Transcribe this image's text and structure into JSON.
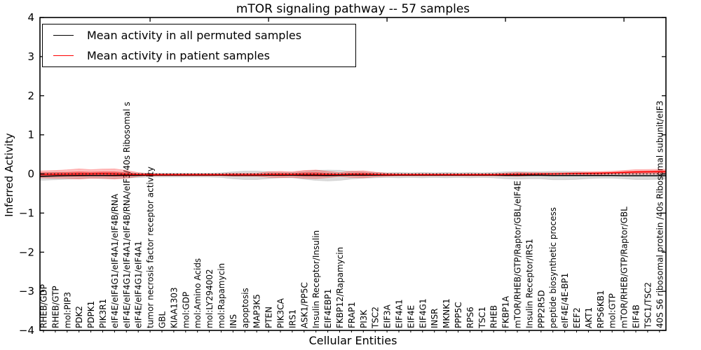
{
  "figure": {
    "title": "mTOR signaling pathway -- 57 samples"
  },
  "legend": {
    "entries": [
      {
        "label": "Mean activity in all permuted samples",
        "color": "#000000"
      },
      {
        "label": "Mean activity in patient samples",
        "color": "#ff0000"
      }
    ]
  },
  "chart_data": {
    "type": "line",
    "title": "mTOR signaling pathway -- 57 samples",
    "xlabel": "Cellular Entities",
    "ylabel": "Inferred Activity",
    "ylim": [
      -4,
      4
    ],
    "yticks": [
      -4,
      -3,
      -2,
      -1,
      0,
      1,
      2,
      3,
      4
    ],
    "ytick_labels": [
      "−4",
      "−3",
      "−2",
      "−1",
      "0",
      "1",
      "2",
      "3",
      "4"
    ],
    "grid": false,
    "legend_position": "upper left",
    "zero_line": {
      "style": "dotted",
      "color": "#000000",
      "y": 0
    },
    "categories": [
      "RHEB/GDP",
      "RHEB/GTP",
      "mol:PIP3",
      "PDK2",
      "PDPK1",
      "PIK3R1",
      "eIF4E/eIF4G1/eIF4A1/eIF4B/RNA",
      "eIF4E/eIF4G1/eIF4A1/eIF4B/RNA/eIF3/40s Ribosomal s",
      "eIF4E/eIF4G1/eIF4A1",
      "tumor necrosis factor receptor activity",
      "GBL",
      "KIAA1303",
      "mol:GDP",
      "mol:Amino Acids",
      "mol:LY294002",
      "mol:Rapamycin",
      "INS",
      "apoptosis",
      "MAP3K5",
      "PTEN",
      "PIK3CA",
      "IRS1",
      "ASK1/PP5C",
      "Insulin Receptor/Insulin",
      "EIF4EBP1",
      "FKBP12/Rapamycin",
      "FRAP1",
      "PI3K",
      "TSC2",
      "EIF3A",
      "EIF4A1",
      "EIF4E",
      "EIF4G1",
      "INSR",
      "MKNK1",
      "PPP5C",
      "RPS6",
      "TSC1",
      "RHEB",
      "FKBP1A",
      "mTOR/RHEB/GTP/Raptor/GBL/eIF4E",
      "Insulin Receptor/IRS1",
      "PPP2R5D",
      "peptide biosynthetic process",
      "eIF4E/4E-BP1",
      "EEF2",
      "AKT1",
      "RPS6KB1",
      "mol:GTP",
      "mTOR/RHEB/GTP/Raptor/GBL",
      "EIF4B",
      "TSC1/TSC2",
      "40S S6 ribosomal protein /40s Ribosomal subunit/eIF3"
    ],
    "series": [
      {
        "name": "Mean activity in all permuted samples",
        "color": "#000000",
        "band_color": "#bbbbbb",
        "values": [
          -0.06,
          -0.05,
          -0.045,
          -0.04,
          -0.04,
          -0.04,
          -0.04,
          -0.035,
          -0.035,
          -0.03,
          -0.03,
          -0.03,
          -0.03,
          -0.03,
          -0.03,
          -0.03,
          -0.035,
          -0.035,
          -0.035,
          -0.03,
          -0.03,
          -0.03,
          -0.035,
          -0.035,
          -0.04,
          -0.035,
          -0.03,
          -0.03,
          -0.03,
          -0.03,
          -0.03,
          -0.03,
          -0.03,
          -0.03,
          -0.03,
          -0.03,
          -0.03,
          -0.03,
          -0.03,
          -0.035,
          -0.035,
          -0.035,
          -0.035,
          -0.04,
          -0.04,
          -0.04,
          -0.04,
          -0.04,
          -0.04,
          -0.045,
          -0.045,
          -0.045,
          -0.045
        ],
        "band_halfwidth": [
          0.1,
          0.1,
          0.09,
          0.08,
          0.07,
          0.08,
          0.08,
          0.07,
          0.06,
          0.05,
          0.05,
          0.05,
          0.05,
          0.05,
          0.05,
          0.06,
          0.09,
          0.11,
          0.11,
          0.09,
          0.07,
          0.07,
          0.1,
          0.13,
          0.14,
          0.13,
          0.1,
          0.08,
          0.07,
          0.06,
          0.07,
          0.06,
          0.07,
          0.06,
          0.07,
          0.06,
          0.07,
          0.06,
          0.07,
          0.09,
          0.1,
          0.09,
          0.09,
          0.11,
          0.11,
          0.1,
          0.08,
          0.07,
          0.07,
          0.08,
          0.1,
          0.1,
          0.09
        ]
      },
      {
        "name": "Mean activity in patient samples",
        "color": "#ff0000",
        "band_color": "#ff6666",
        "values": [
          -0.01,
          -0.01,
          -0.005,
          0.0,
          0.0,
          0.005,
          0.0,
          -0.01,
          -0.015,
          -0.02,
          -0.02,
          -0.02,
          -0.02,
          -0.02,
          -0.02,
          -0.02,
          -0.02,
          -0.02,
          -0.02,
          -0.015,
          -0.015,
          -0.015,
          -0.01,
          -0.01,
          -0.015,
          -0.015,
          -0.01,
          -0.01,
          -0.015,
          -0.02,
          -0.02,
          -0.02,
          -0.02,
          -0.02,
          -0.02,
          -0.02,
          -0.02,
          -0.02,
          -0.02,
          -0.015,
          -0.01,
          -0.005,
          0.0,
          0.0,
          0.005,
          0.01,
          0.015,
          0.02,
          0.03,
          0.04,
          0.05,
          0.055,
          0.06
        ],
        "band_halfwidth": [
          0.09,
          0.1,
          0.11,
          0.13,
          0.11,
          0.12,
          0.13,
          0.1,
          0.05,
          0.03,
          0.03,
          0.03,
          0.03,
          0.03,
          0.03,
          0.03,
          0.04,
          0.04,
          0.04,
          0.07,
          0.08,
          0.07,
          0.1,
          0.11,
          0.08,
          0.05,
          0.08,
          0.09,
          0.06,
          0.04,
          0.03,
          0.03,
          0.03,
          0.03,
          0.03,
          0.03,
          0.03,
          0.03,
          0.03,
          0.04,
          0.05,
          0.04,
          0.03,
          0.03,
          0.03,
          0.04,
          0.04,
          0.04,
          0.04,
          0.05,
          0.06,
          0.06,
          0.06
        ]
      }
    ]
  }
}
